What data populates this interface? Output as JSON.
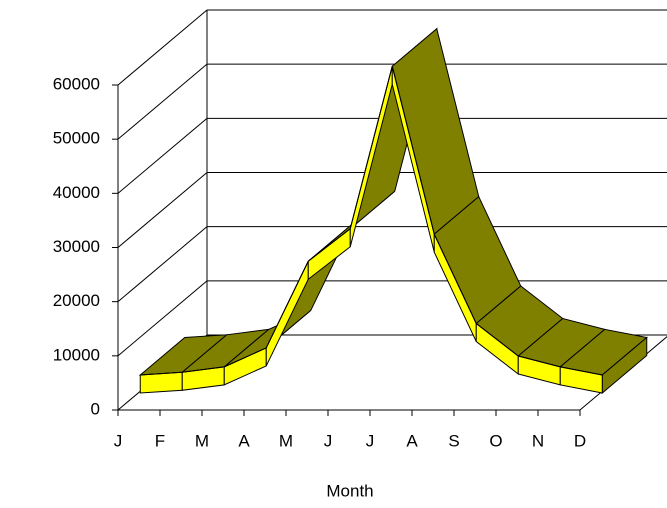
{
  "chart_data": {
    "type": "ribbon3d",
    "x_label": "Month",
    "categories": [
      "J",
      "F",
      "M",
      "A",
      "M",
      "J",
      "J",
      "A",
      "S",
      "O",
      "N",
      "D"
    ],
    "values": [
      3000,
      3500,
      4500,
      8000,
      24000,
      30000,
      60000,
      29000,
      12500,
      6500,
      4500,
      3000
    ],
    "color": "#ffff00",
    "top_color": "#808000",
    "ylim": [
      0,
      60000
    ],
    "yticks": [
      0,
      10000,
      20000,
      30000,
      40000,
      50000,
      60000
    ],
    "grid": true
  }
}
